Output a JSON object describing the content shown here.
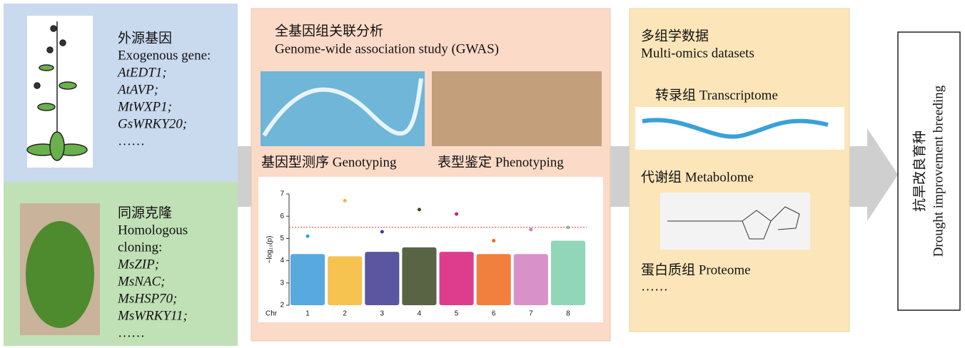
{
  "exogenous": {
    "title_cn": "外源基因",
    "title_en": "Exogenous gene:",
    "genes": [
      "AtEDT1;",
      "AtAVP;",
      "MtWXP1;",
      "GsWRKY20;"
    ],
    "more": "……"
  },
  "homologous": {
    "title_cn": "同源克隆",
    "title_en": [
      "Homologous",
      "cloning:"
    ],
    "genes": [
      "MsZIP;",
      "MsNAC;",
      "MsHSP70;",
      "MsWRKY11;"
    ],
    "more": "……"
  },
  "gwas": {
    "title_cn": "全基因组关联分析",
    "title_en": "Genome-wide association study (GWAS)",
    "genotyping": "基因型测序 Genotyping",
    "phenotyping": "表型鉴定 Phenotyping",
    "manhattan": {
      "ylabel": "−log₁₀(p)",
      "x_title": "Chr",
      "ylim": [
        2,
        7
      ],
      "yticks": [
        2,
        3,
        4,
        5,
        6,
        7
      ],
      "threshold": 5.5,
      "chromosomes": [
        "1",
        "2",
        "3",
        "4",
        "5",
        "6",
        "7",
        "8"
      ],
      "colors": [
        "#3a9ad9",
        "#f4b731",
        "#3d3a8f",
        "#3b4a24",
        "#d81b7a",
        "#ee6a1c",
        "#d27fc0",
        "#7fcfae"
      ],
      "bulk": [
        4.3,
        4.2,
        4.4,
        4.6,
        4.4,
        4.3,
        4.3,
        4.9
      ],
      "peak": [
        5.1,
        6.7,
        5.3,
        6.3,
        6.1,
        4.9,
        5.4,
        5.5
      ]
    }
  },
  "omics": {
    "title_cn": "多组学数据",
    "title_en": "Multi-omics datasets",
    "transcriptome": "转录组 Transcriptome",
    "metabolome": "代谢组 Metabolome",
    "proteome": "蛋白质组 Proteome",
    "more": "……"
  },
  "output": {
    "title_cn": "抗旱改良育种",
    "title_en": "Drought improvement breeding"
  }
}
